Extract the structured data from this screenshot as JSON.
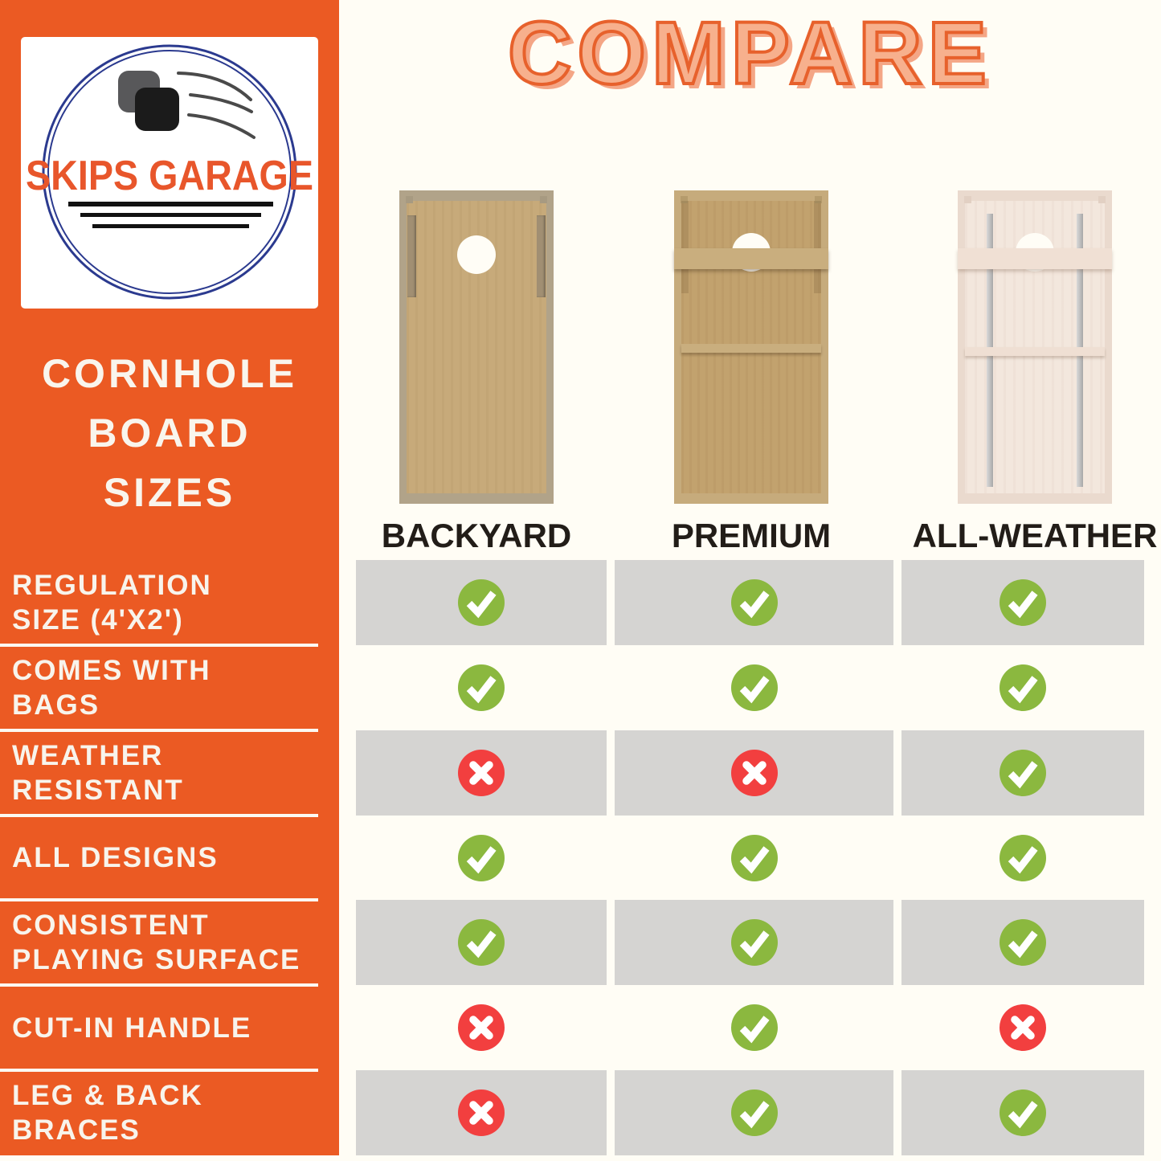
{
  "header": {
    "title": "COMPARE"
  },
  "sidebar": {
    "logo": {
      "brand": "SKIPS GARAGE"
    },
    "title_lines": [
      "CORNHOLE",
      "BOARD",
      "SIZES"
    ]
  },
  "products": [
    {
      "name": "BACKYARD"
    },
    {
      "name": "PREMIUM"
    },
    {
      "name": "ALL-WEATHER"
    }
  ],
  "chart_data": {
    "type": "table",
    "title": "COMPARE",
    "columns": [
      "BACKYARD",
      "PREMIUM",
      "ALL-WEATHER"
    ],
    "rows": [
      {
        "feature": "REGULATION SIZE (4'X2')",
        "feature_lines": [
          "REGULATION",
          "SIZE (4'X2')"
        ],
        "values": [
          "check",
          "check",
          "check"
        ],
        "shaded": true
      },
      {
        "feature": "COMES WITH BAGS",
        "feature_lines": [
          "COMES WITH",
          "BAGS"
        ],
        "values": [
          "check",
          "check",
          "check"
        ],
        "shaded": false
      },
      {
        "feature": "WEATHER RESISTANT",
        "feature_lines": [
          "WEATHER",
          "RESISTANT"
        ],
        "values": [
          "cross",
          "cross",
          "check"
        ],
        "shaded": true
      },
      {
        "feature": "ALL DESIGNS",
        "feature_lines": [
          "ALL DESIGNS"
        ],
        "values": [
          "check",
          "check",
          "check"
        ],
        "shaded": false
      },
      {
        "feature": "CONSISTENT PLAYING SURFACE",
        "feature_lines": [
          "CONSISTENT",
          "PLAYING SURFACE"
        ],
        "values": [
          "check",
          "check",
          "check"
        ],
        "shaded": true
      },
      {
        "feature": "CUT-IN HANDLE",
        "feature_lines": [
          "CUT-IN HANDLE"
        ],
        "values": [
          "cross",
          "check",
          "cross"
        ],
        "shaded": false
      },
      {
        "feature": "LEG & BACK BRACES",
        "feature_lines": [
          "LEG & BACK",
          "BRACES"
        ],
        "values": [
          "cross",
          "check",
          "check"
        ],
        "shaded": true
      }
    ]
  },
  "colors": {
    "orange": "#EB5A23",
    "cream": "#FFFDF5",
    "row_gray": "#D5D4D2",
    "check_green": "#8BB83F",
    "cross_red": "#F23F3F",
    "navy_ring": "#2B3A8F",
    "label_black": "#221D18"
  }
}
